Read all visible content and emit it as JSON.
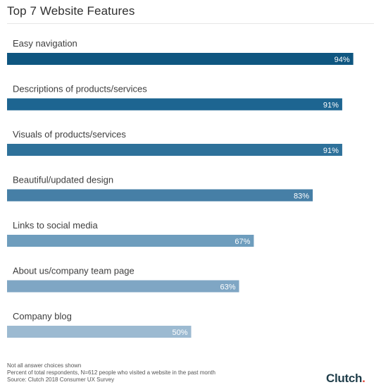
{
  "chart_data": {
    "type": "bar",
    "orientation": "horizontal",
    "title": "Top 7 Website Features",
    "categories": [
      "Easy navigation",
      "Descriptions of products/services",
      "Visuals of products/services",
      "Beautiful/updated design",
      "Links to social media",
      "About us/company team page",
      "Company blog"
    ],
    "values": [
      94,
      91,
      91,
      83,
      67,
      63,
      50
    ],
    "value_labels": [
      "94%",
      "91%",
      "91%",
      "83%",
      "67%",
      "63%",
      "50%"
    ],
    "unit": "%",
    "xlim": [
      0,
      100
    ],
    "grid": false,
    "colors": [
      "#0f5680",
      "#1d6591",
      "#2e719a",
      "#467fa6",
      "#6e9dbd",
      "#7fa6c4",
      "#9cbad1"
    ]
  },
  "notes": [
    "Not all answer choices shown",
    "Percent of total respondents, N=612 people who visited a website in the past month",
    "Source: Clutch 2018 Consumer UX Survey"
  ],
  "logo": "Clutch"
}
